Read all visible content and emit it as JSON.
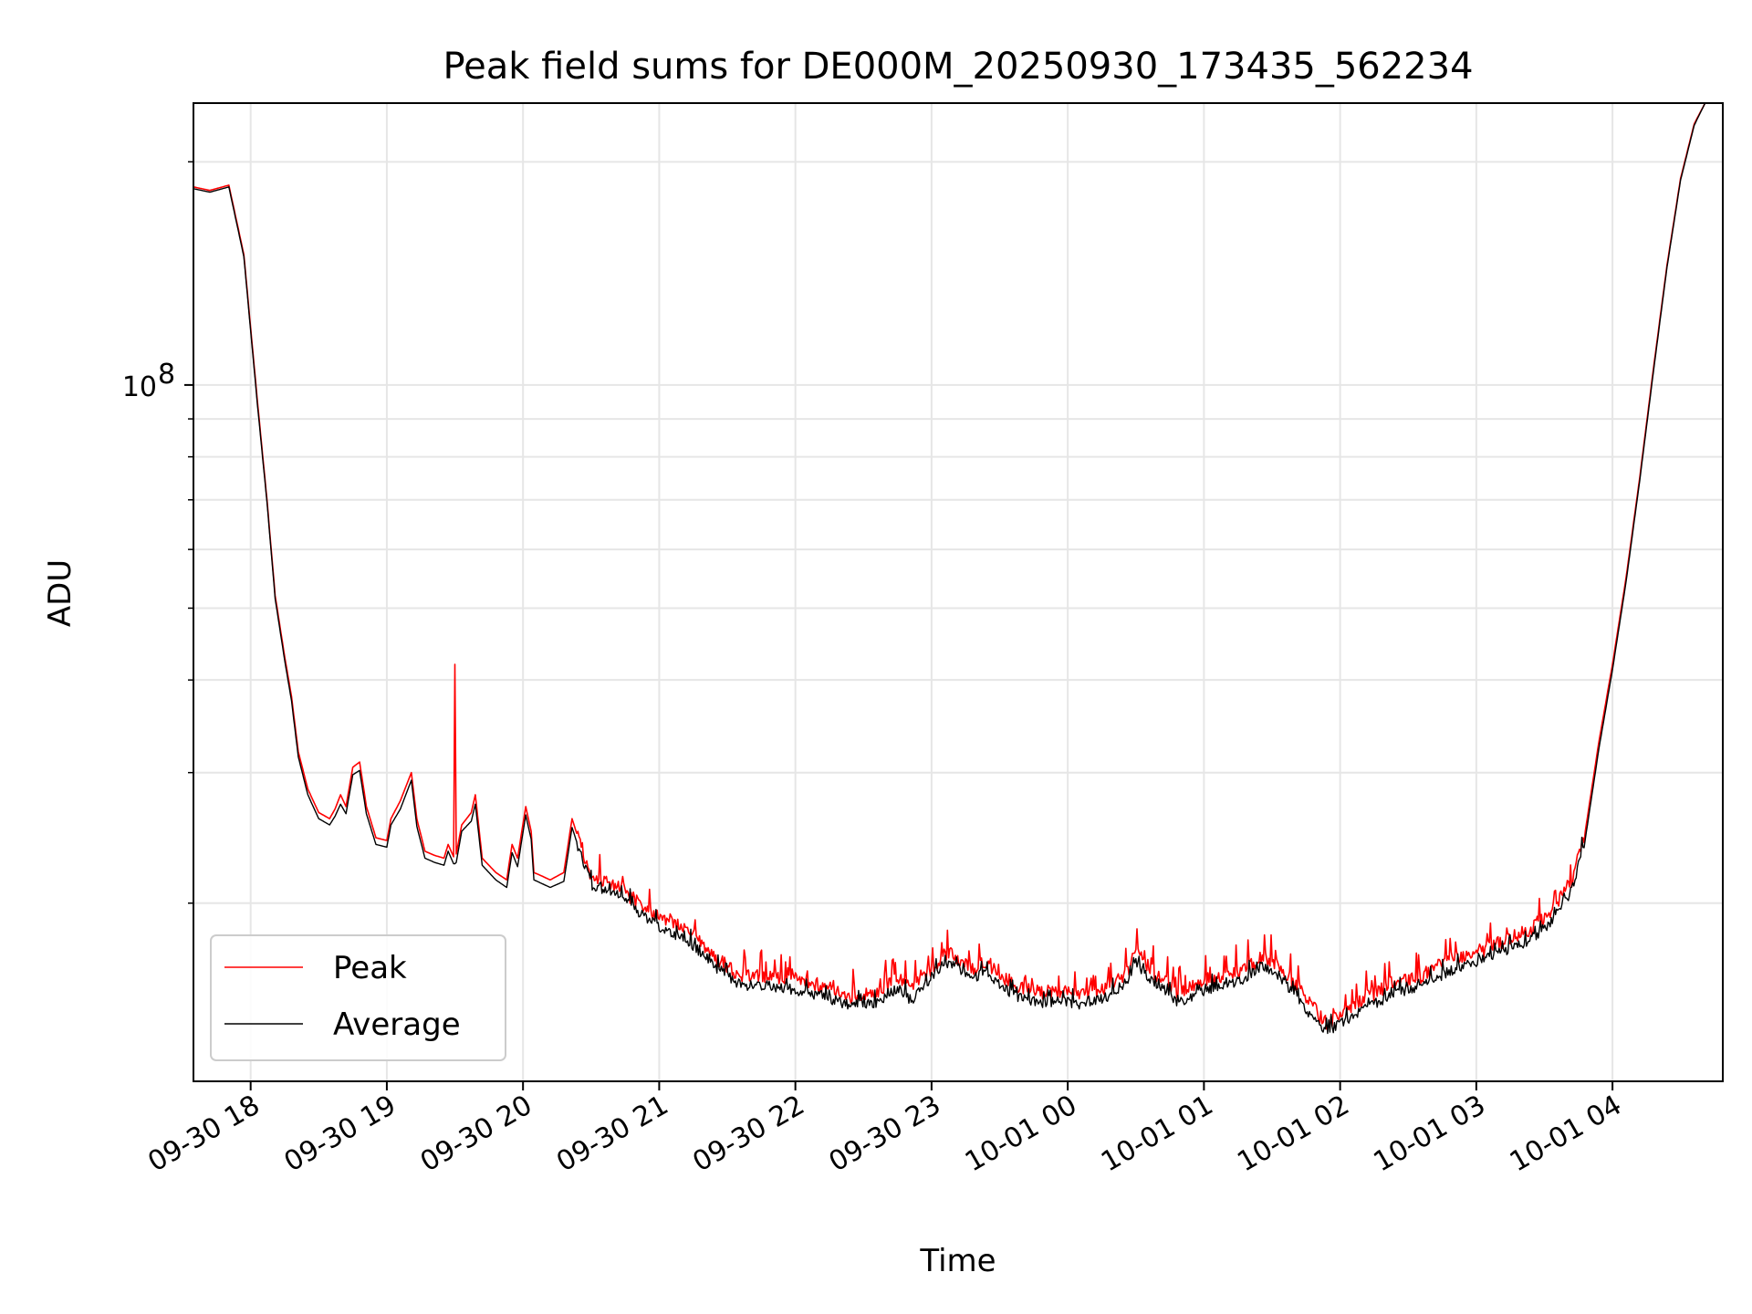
{
  "chart_data": {
    "type": "line",
    "title": "Peak field sums for DE000M_20250930_173435_562234",
    "xlabel": "Time",
    "ylabel": "ADU",
    "yscale": "log",
    "ylim": [
      11500000,
      240000000
    ],
    "xlim_hours": [
      17.58,
      28.81
    ],
    "grid": true,
    "legend_position": "lower-left",
    "x_ticks": [
      {
        "hour": 18,
        "label": "09-30 18"
      },
      {
        "hour": 19,
        "label": "09-30 19"
      },
      {
        "hour": 20,
        "label": "09-30 20"
      },
      {
        "hour": 21,
        "label": "09-30 21"
      },
      {
        "hour": 22,
        "label": "09-30 22"
      },
      {
        "hour": 23,
        "label": "09-30 23"
      },
      {
        "hour": 24,
        "label": "10-01 00"
      },
      {
        "hour": 25,
        "label": "10-01 01"
      },
      {
        "hour": 26,
        "label": "10-01 02"
      },
      {
        "hour": 27,
        "label": "10-01 03"
      },
      {
        "hour": 28,
        "label": "10-01 04"
      }
    ],
    "y_major_ticks": [
      {
        "value": 100000000,
        "base": "10",
        "exp": "8"
      }
    ],
    "y_minor_values": [
      20000000,
      30000000,
      40000000,
      50000000,
      60000000,
      70000000,
      80000000,
      90000000,
      200000000
    ],
    "series": [
      {
        "name": "Peak",
        "color": "#ff0000",
        "points": [
          [
            17.58,
            185000000
          ],
          [
            17.7,
            183000000
          ],
          [
            17.84,
            186000000
          ],
          [
            17.95,
            150000000
          ],
          [
            18.05,
            95000000
          ],
          [
            18.12,
            70000000
          ],
          [
            18.18,
            52000000
          ],
          [
            18.25,
            43000000
          ],
          [
            18.3,
            38000000
          ],
          [
            18.35,
            32000000
          ],
          [
            18.42,
            28500000
          ],
          [
            18.5,
            26500000
          ],
          [
            18.58,
            26000000
          ],
          [
            18.62,
            26800000
          ],
          [
            18.66,
            28000000
          ],
          [
            18.7,
            27000000
          ],
          [
            18.75,
            30500000
          ],
          [
            18.8,
            31000000
          ],
          [
            18.85,
            27000000
          ],
          [
            18.92,
            24500000
          ],
          [
            19.0,
            24300000
          ],
          [
            19.03,
            26000000
          ],
          [
            19.1,
            27500000
          ],
          [
            19.18,
            30000000
          ],
          [
            19.22,
            26000000
          ],
          [
            19.28,
            23500000
          ],
          [
            19.35,
            23200000
          ],
          [
            19.42,
            23000000
          ],
          [
            19.45,
            24000000
          ],
          [
            19.49,
            23100000
          ],
          [
            19.5,
            42000000
          ],
          [
            19.51,
            23300000
          ],
          [
            19.55,
            25500000
          ],
          [
            19.62,
            26500000
          ],
          [
            19.65,
            28000000
          ],
          [
            19.7,
            23000000
          ],
          [
            19.8,
            22000000
          ],
          [
            19.88,
            21500000
          ],
          [
            19.92,
            24000000
          ],
          [
            19.96,
            23000000
          ],
          [
            20.02,
            27000000
          ],
          [
            20.06,
            25000000
          ],
          [
            20.08,
            22000000
          ],
          [
            20.2,
            21500000
          ],
          [
            20.3,
            22000000
          ],
          [
            20.36,
            26000000
          ],
          [
            20.42,
            24000000
          ],
          [
            20.5,
            21800000
          ],
          [
            20.7,
            21200000
          ],
          [
            20.85,
            20000000
          ],
          [
            21.0,
            19200000
          ],
          [
            21.2,
            18500000
          ],
          [
            21.4,
            17000000
          ],
          [
            21.6,
            16000000
          ],
          [
            21.8,
            16000000
          ],
          [
            22.0,
            15800000
          ],
          [
            22.2,
            15500000
          ],
          [
            22.4,
            15000000
          ],
          [
            22.6,
            15200000
          ],
          [
            22.75,
            15900000
          ],
          [
            22.85,
            15300000
          ],
          [
            23.0,
            16300000
          ],
          [
            23.1,
            17200000
          ],
          [
            23.2,
            16900000
          ],
          [
            23.3,
            16300000
          ],
          [
            23.4,
            16700000
          ],
          [
            23.5,
            16000000
          ],
          [
            23.65,
            15400000
          ],
          [
            23.8,
            15200000
          ],
          [
            23.95,
            15300000
          ],
          [
            24.1,
            15100000
          ],
          [
            24.3,
            15500000
          ],
          [
            24.45,
            16300000
          ],
          [
            24.5,
            17300000
          ],
          [
            24.58,
            16500000
          ],
          [
            24.7,
            15800000
          ],
          [
            24.8,
            15200000
          ],
          [
            24.95,
            15600000
          ],
          [
            25.1,
            16000000
          ],
          [
            25.3,
            16300000
          ],
          [
            25.42,
            17000000
          ],
          [
            25.55,
            16500000
          ],
          [
            25.7,
            15300000
          ],
          [
            25.8,
            14500000
          ],
          [
            25.9,
            13800000
          ],
          [
            26.0,
            14200000
          ],
          [
            26.2,
            15000000
          ],
          [
            26.4,
            15600000
          ],
          [
            26.6,
            16000000
          ],
          [
            26.8,
            16800000
          ],
          [
            27.0,
            17200000
          ],
          [
            27.2,
            17800000
          ],
          [
            27.4,
            18500000
          ],
          [
            27.55,
            19500000
          ],
          [
            27.7,
            21500000
          ],
          [
            27.8,
            25000000
          ],
          [
            27.9,
            33000000
          ],
          [
            28.0,
            42000000
          ],
          [
            28.1,
            55000000
          ],
          [
            28.2,
            75000000
          ],
          [
            28.3,
            105000000
          ],
          [
            28.4,
            145000000
          ],
          [
            28.5,
            190000000
          ],
          [
            28.6,
            225000000
          ],
          [
            28.68,
            240000000
          ],
          [
            28.81,
            240000000
          ]
        ]
      },
      {
        "name": "Average",
        "color": "#000000",
        "points": [
          [
            17.58,
            184000000
          ],
          [
            17.7,
            182000000
          ],
          [
            17.84,
            185000000
          ],
          [
            17.95,
            149000000
          ],
          [
            18.05,
            94000000
          ],
          [
            18.12,
            69500000
          ],
          [
            18.18,
            51500000
          ],
          [
            18.25,
            42500000
          ],
          [
            18.3,
            37500000
          ],
          [
            18.35,
            31500000
          ],
          [
            18.42,
            28000000
          ],
          [
            18.5,
            26000000
          ],
          [
            18.58,
            25500000
          ],
          [
            18.62,
            26200000
          ],
          [
            18.66,
            27200000
          ],
          [
            18.7,
            26400000
          ],
          [
            18.75,
            29800000
          ],
          [
            18.8,
            30200000
          ],
          [
            18.85,
            26400000
          ],
          [
            18.92,
            24000000
          ],
          [
            19.0,
            23800000
          ],
          [
            19.03,
            25500000
          ],
          [
            19.1,
            26800000
          ],
          [
            19.18,
            29300000
          ],
          [
            19.22,
            25400000
          ],
          [
            19.28,
            23000000
          ],
          [
            19.35,
            22700000
          ],
          [
            19.42,
            22500000
          ],
          [
            19.45,
            23500000
          ],
          [
            19.49,
            22600000
          ],
          [
            19.5,
            22600000
          ],
          [
            19.51,
            22700000
          ],
          [
            19.55,
            25000000
          ],
          [
            19.62,
            25800000
          ],
          [
            19.65,
            27200000
          ],
          [
            19.7,
            22500000
          ],
          [
            19.8,
            21500000
          ],
          [
            19.88,
            21000000
          ],
          [
            19.92,
            23400000
          ],
          [
            19.96,
            22400000
          ],
          [
            20.02,
            26300000
          ],
          [
            20.06,
            24400000
          ],
          [
            20.08,
            21500000
          ],
          [
            20.2,
            21000000
          ],
          [
            20.3,
            21400000
          ],
          [
            20.36,
            25300000
          ],
          [
            20.42,
            23400000
          ],
          [
            20.5,
            21200000
          ],
          [
            20.7,
            20600000
          ],
          [
            20.85,
            19500000
          ],
          [
            21.0,
            18600000
          ],
          [
            21.2,
            17900000
          ],
          [
            21.4,
            16500000
          ],
          [
            21.6,
            15500000
          ],
          [
            21.8,
            15500000
          ],
          [
            22.0,
            15300000
          ],
          [
            22.2,
            15000000
          ],
          [
            22.4,
            14600000
          ],
          [
            22.6,
            14700000
          ],
          [
            22.75,
            15400000
          ],
          [
            22.85,
            14800000
          ],
          [
            23.0,
            15800000
          ],
          [
            23.1,
            16700000
          ],
          [
            23.2,
            16400000
          ],
          [
            23.3,
            15800000
          ],
          [
            23.4,
            16200000
          ],
          [
            23.5,
            15500000
          ],
          [
            23.65,
            14900000
          ],
          [
            23.8,
            14700000
          ],
          [
            23.95,
            14800000
          ],
          [
            24.1,
            14600000
          ],
          [
            24.3,
            15000000
          ],
          [
            24.45,
            15800000
          ],
          [
            24.5,
            16700000
          ],
          [
            24.58,
            16000000
          ],
          [
            24.7,
            15300000
          ],
          [
            24.8,
            14700000
          ],
          [
            24.95,
            15100000
          ],
          [
            25.1,
            15500000
          ],
          [
            25.3,
            15800000
          ],
          [
            25.42,
            16500000
          ],
          [
            25.55,
            16000000
          ],
          [
            25.7,
            14800000
          ],
          [
            25.8,
            14000000
          ],
          [
            25.9,
            13400000
          ],
          [
            26.0,
            13800000
          ],
          [
            26.2,
            14500000
          ],
          [
            26.4,
            15100000
          ],
          [
            26.6,
            15500000
          ],
          [
            26.8,
            16200000
          ],
          [
            27.0,
            16700000
          ],
          [
            27.2,
            17200000
          ],
          [
            27.4,
            17900000
          ],
          [
            27.55,
            18900000
          ],
          [
            27.7,
            20800000
          ],
          [
            27.8,
            24400000
          ],
          [
            27.9,
            32300000
          ],
          [
            28.0,
            41300000
          ],
          [
            28.1,
            54300000
          ],
          [
            28.2,
            74300000
          ],
          [
            28.3,
            104000000
          ],
          [
            28.4,
            144000000
          ],
          [
            28.5,
            189000000
          ],
          [
            28.6,
            224000000
          ],
          [
            28.68,
            240000000
          ],
          [
            28.81,
            240000000
          ]
        ]
      }
    ]
  }
}
